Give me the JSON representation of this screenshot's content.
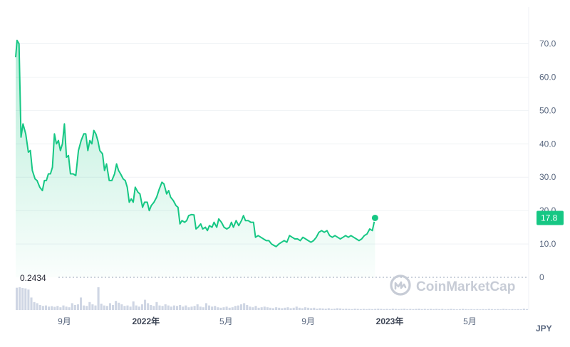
{
  "chart_data": {
    "type": "area",
    "currency": "JPY",
    "y_ticks": [
      "0",
      "10.0",
      "20.0",
      "30.0",
      "40.0",
      "50.0",
      "60.0",
      "70.0"
    ],
    "ylim": [
      0,
      78
    ],
    "x_range": [
      "2021-06-20",
      "2023-07-28"
    ],
    "time_labels": [
      {
        "text": "9月",
        "date": "2021-09-01",
        "bold": false
      },
      {
        "text": "2022年",
        "date": "2022-01-01",
        "bold": true
      },
      {
        "text": "5月",
        "date": "2022-05-01",
        "bold": false
      },
      {
        "text": "9月",
        "date": "2022-09-01",
        "bold": false
      },
      {
        "text": "2023年",
        "date": "2023-01-01",
        "bold": true
      },
      {
        "text": "5月",
        "date": "2023-05-01",
        "bold": false
      }
    ],
    "last_price": 17.8,
    "last_price_label": "17.8",
    "volume_max_label": "0.2434",
    "series": [
      {
        "name": "price",
        "color": "#16c784",
        "points": [
          [
            "2021-06-20",
            66
          ],
          [
            "2021-06-22",
            71
          ],
          [
            "2021-06-25",
            70
          ],
          [
            "2021-06-28",
            42
          ],
          [
            "2021-07-01",
            46
          ],
          [
            "2021-07-05",
            43
          ],
          [
            "2021-07-09",
            37.5
          ],
          [
            "2021-07-12",
            38
          ],
          [
            "2021-07-15",
            32
          ],
          [
            "2021-07-19",
            29.5
          ],
          [
            "2021-07-22",
            29
          ],
          [
            "2021-07-26",
            27
          ],
          [
            "2021-07-30",
            26
          ],
          [
            "2021-08-02",
            29
          ],
          [
            "2021-08-05",
            29
          ],
          [
            "2021-08-08",
            31
          ],
          [
            "2021-08-11",
            31
          ],
          [
            "2021-08-14",
            33
          ],
          [
            "2021-08-17",
            43
          ],
          [
            "2021-08-20",
            40
          ],
          [
            "2021-08-23",
            41
          ],
          [
            "2021-08-26",
            38
          ],
          [
            "2021-08-29",
            40
          ],
          [
            "2021-09-01",
            46
          ],
          [
            "2021-09-04",
            36
          ],
          [
            "2021-09-07",
            36.5
          ],
          [
            "2021-09-10",
            31
          ],
          [
            "2021-09-14",
            31
          ],
          [
            "2021-09-18",
            30.5
          ],
          [
            "2021-09-22",
            38
          ],
          [
            "2021-09-26",
            41
          ],
          [
            "2021-09-30",
            43
          ],
          [
            "2021-10-03",
            43
          ],
          [
            "2021-10-06",
            38
          ],
          [
            "2021-10-09",
            41
          ],
          [
            "2021-10-12",
            40
          ],
          [
            "2021-10-15",
            44
          ],
          [
            "2021-10-18",
            43
          ],
          [
            "2021-10-21",
            41
          ],
          [
            "2021-10-24",
            38
          ],
          [
            "2021-10-28",
            37
          ],
          [
            "2021-10-31",
            32
          ],
          [
            "2021-11-03",
            34
          ],
          [
            "2021-11-07",
            29
          ],
          [
            "2021-11-11",
            29
          ],
          [
            "2021-11-15",
            31
          ],
          [
            "2021-11-18",
            34
          ],
          [
            "2021-11-21",
            32
          ],
          [
            "2021-11-24",
            31
          ],
          [
            "2021-11-28",
            29.5
          ],
          [
            "2021-12-01",
            29
          ],
          [
            "2021-12-04",
            27
          ],
          [
            "2021-12-07",
            22.5
          ],
          [
            "2021-12-10",
            23.5
          ],
          [
            "2021-12-13",
            22.5
          ],
          [
            "2021-12-16",
            27
          ],
          [
            "2021-12-20",
            25.5
          ],
          [
            "2021-12-23",
            25
          ],
          [
            "2021-12-27",
            21
          ],
          [
            "2021-12-30",
            22.5
          ],
          [
            "2022-01-03",
            22.5
          ],
          [
            "2022-01-06",
            20
          ],
          [
            "2022-01-09",
            21.5
          ],
          [
            "2022-01-13",
            22.5
          ],
          [
            "2022-01-17",
            24
          ],
          [
            "2022-01-21",
            26.5
          ],
          [
            "2022-01-25",
            28.5
          ],
          [
            "2022-01-28",
            28
          ],
          [
            "2022-02-01",
            25
          ],
          [
            "2022-02-04",
            26
          ],
          [
            "2022-02-07",
            24
          ],
          [
            "2022-02-11",
            23
          ],
          [
            "2022-02-15",
            21.5
          ],
          [
            "2022-02-18",
            21
          ],
          [
            "2022-02-21",
            16
          ],
          [
            "2022-02-24",
            17
          ],
          [
            "2022-02-28",
            16.5
          ],
          [
            "2022-03-03",
            17
          ],
          [
            "2022-03-06",
            18.5
          ],
          [
            "2022-03-10",
            18.8
          ],
          [
            "2022-03-14",
            18.7
          ],
          [
            "2022-03-17",
            14.5
          ],
          [
            "2022-03-20",
            15
          ],
          [
            "2022-03-24",
            16
          ],
          [
            "2022-03-27",
            14.5
          ],
          [
            "2022-03-31",
            15
          ],
          [
            "2022-04-03",
            14
          ],
          [
            "2022-04-06",
            15.5
          ],
          [
            "2022-04-10",
            15
          ],
          [
            "2022-04-13",
            16.5
          ],
          [
            "2022-04-17",
            15
          ],
          [
            "2022-04-20",
            17.5
          ],
          [
            "2022-04-24",
            16.5
          ],
          [
            "2022-04-28",
            15
          ],
          [
            "2022-05-02",
            14.5
          ],
          [
            "2022-05-06",
            15
          ],
          [
            "2022-05-09",
            16.5
          ],
          [
            "2022-05-12",
            15
          ],
          [
            "2022-05-16",
            17
          ],
          [
            "2022-05-20",
            15.5
          ],
          [
            "2022-05-24",
            17
          ],
          [
            "2022-05-27",
            18.5
          ],
          [
            "2022-05-30",
            17
          ],
          [
            "2022-06-03",
            17
          ],
          [
            "2022-06-07",
            16.5
          ],
          [
            "2022-06-11",
            16.5
          ],
          [
            "2022-06-14",
            12
          ],
          [
            "2022-06-18",
            12.5
          ],
          [
            "2022-06-22",
            12
          ],
          [
            "2022-06-26",
            11.5
          ],
          [
            "2022-06-30",
            11
          ],
          [
            "2022-07-04",
            11
          ],
          [
            "2022-07-08",
            10
          ],
          [
            "2022-07-12",
            9.5
          ],
          [
            "2022-07-15",
            9.2
          ],
          [
            "2022-07-19",
            10
          ],
          [
            "2022-07-23",
            10.5
          ],
          [
            "2022-07-27",
            11
          ],
          [
            "2022-07-31",
            10.5
          ],
          [
            "2022-08-04",
            12.5
          ],
          [
            "2022-08-08",
            12
          ],
          [
            "2022-08-12",
            11.5
          ],
          [
            "2022-08-16",
            11.5
          ],
          [
            "2022-08-20",
            11
          ],
          [
            "2022-08-24",
            12
          ],
          [
            "2022-08-28",
            11.5
          ],
          [
            "2022-09-01",
            11
          ],
          [
            "2022-09-05",
            10.5
          ],
          [
            "2022-09-09",
            11
          ],
          [
            "2022-09-13",
            12
          ],
          [
            "2022-09-17",
            13.5
          ],
          [
            "2022-09-21",
            14
          ],
          [
            "2022-09-25",
            13.5
          ],
          [
            "2022-09-29",
            14
          ],
          [
            "2022-10-03",
            12.5
          ],
          [
            "2022-10-07",
            12
          ],
          [
            "2022-10-11",
            12.5
          ],
          [
            "2022-10-15",
            12
          ],
          [
            "2022-10-19",
            11.5
          ],
          [
            "2022-10-23",
            12
          ],
          [
            "2022-10-27",
            12.5
          ],
          [
            "2022-10-31",
            12
          ],
          [
            "2022-11-04",
            12.5
          ],
          [
            "2022-11-08",
            12
          ],
          [
            "2022-11-12",
            11.5
          ],
          [
            "2022-11-16",
            11
          ],
          [
            "2022-11-20",
            11.5
          ],
          [
            "2022-11-24",
            12.5
          ],
          [
            "2022-11-28",
            13
          ],
          [
            "2022-12-02",
            14.5
          ],
          [
            "2022-12-06",
            14
          ],
          [
            "2022-12-10",
            17.8
          ]
        ]
      }
    ],
    "volume": [
      0.98,
      1.0,
      0.97,
      0.95,
      0.9,
      0.55,
      0.35,
      0.3,
      0.22,
      0.18,
      0.2,
      0.15,
      0.17,
      0.14,
      0.18,
      0.12,
      0.2,
      0.15,
      0.12,
      0.3,
      0.22,
      0.25,
      0.55,
      0.2,
      0.18,
      0.35,
      0.25,
      0.2,
      1.0,
      0.28,
      0.2,
      0.18,
      0.3,
      0.22,
      0.4,
      0.32,
      0.25,
      0.18,
      0.2,
      0.15,
      0.38,
      0.2,
      0.15,
      0.25,
      0.45,
      0.3,
      0.22,
      0.18,
      0.35,
      0.2,
      0.18,
      0.25,
      0.2,
      0.15,
      0.2,
      0.18,
      0.22,
      0.15,
      0.2,
      0.12,
      0.15,
      0.18,
      0.25,
      0.15,
      0.12,
      0.3,
      0.2,
      0.15,
      0.18,
      0.12,
      0.1,
      0.12,
      0.15,
      0.1,
      0.12,
      0.18,
      0.2,
      0.25,
      0.3,
      0.22,
      0.15,
      0.12,
      0.18,
      0.1,
      0.12,
      0.15,
      0.12,
      0.1,
      0.08,
      0.12,
      0.1,
      0.08,
      0.1,
      0.12,
      0.08,
      0.1,
      0.15,
      0.1,
      0.08,
      0.12,
      0.1,
      0.08,
      0.1,
      0.06,
      0.08,
      0.07,
      0.06,
      0.08,
      0.05,
      0.06,
      0.08,
      0.07,
      0.05,
      0.06,
      0.05,
      0.04,
      0.06,
      0.05,
      0.04,
      0.05,
      0.04,
      0.05,
      0.04,
      0.05,
      0.06,
      0.05,
      0.04,
      0.05,
      0.04,
      0.06,
      0.05,
      0.04,
      0.05,
      0.06,
      0.04,
      0.05,
      0.04,
      0.05,
      0.06,
      0.04,
      0.05,
      0.04,
      0.05,
      0.04,
      0.05,
      0.04,
      0.05,
      0.03,
      0.04,
      0.05,
      0.04,
      0.03,
      0.04,
      0.05,
      0.04,
      0.03,
      0.04,
      0.03,
      0.04,
      0.03,
      0.04,
      0.03,
      0.05,
      0.04,
      0.03,
      0.04,
      0.03,
      0.05,
      0.04,
      0.03,
      0.04,
      0.03,
      0.04,
      0.03,
      0.06,
      0.04
    ]
  },
  "watermark": {
    "text": "CoinMarketCap",
    "icon": "coinmarketcap-logo-icon"
  },
  "colors": {
    "line": "#16c784",
    "grid": "#eff2f5",
    "volume": "#cfd6e4",
    "dotted": "#9aa4b8",
    "watermark": "#c7ccd6"
  }
}
